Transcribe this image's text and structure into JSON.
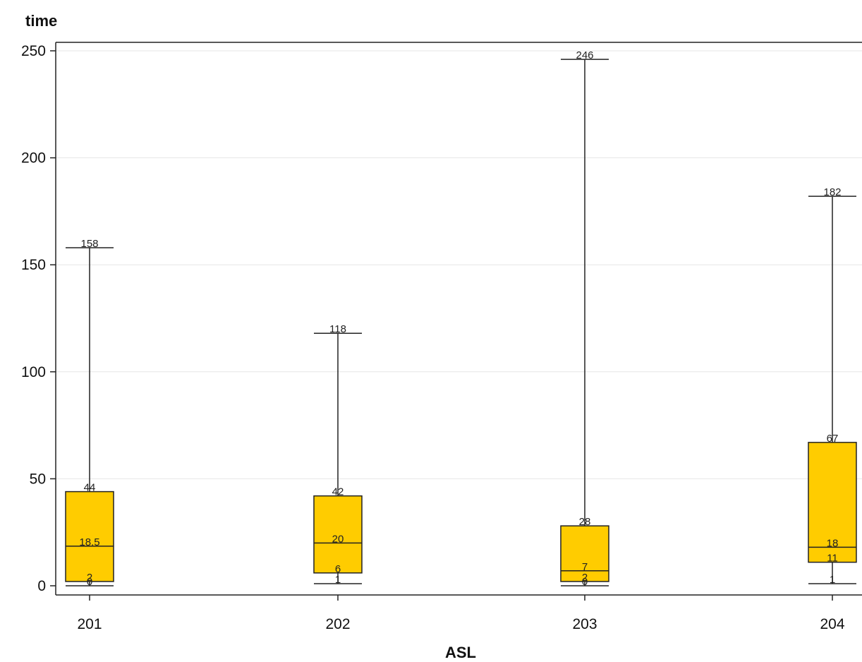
{
  "chart_data": {
    "type": "box",
    "ylabel": "time",
    "xlabel": "ASL",
    "ylim": [
      -4,
      254
    ],
    "yticks": [
      0,
      50,
      100,
      150,
      200,
      250
    ],
    "ytick_labels": [
      "0",
      "50",
      "100",
      "150",
      "200",
      "250"
    ],
    "grid": true,
    "box_color": "#ffcc00",
    "categories": [
      "201",
      "202",
      "203",
      "204"
    ],
    "boxes": [
      {
        "category": "201",
        "min": 0,
        "q1": 2,
        "median": 18.5,
        "q3": 44,
        "max": 158,
        "labels": {
          "min": "0",
          "q1": "2",
          "median": "18.5",
          "q3": "44",
          "max": "158"
        }
      },
      {
        "category": "202",
        "min": 1,
        "q1": 6,
        "median": 20,
        "q3": 42,
        "max": 118,
        "labels": {
          "min": "1",
          "q1": "6",
          "median": "20",
          "q3": "42",
          "max": "118"
        }
      },
      {
        "category": "203",
        "min": 0,
        "q1": 2,
        "median": 7,
        "q3": 28,
        "max": 246,
        "labels": {
          "min": "0",
          "q1": "2",
          "median": "7",
          "q3": "28",
          "max": "246"
        }
      },
      {
        "category": "204",
        "min": 1,
        "q1": 11,
        "median": 18,
        "q3": 67,
        "max": 182,
        "labels": {
          "min": "1",
          "q1": "11",
          "median": "18",
          "q3": "67",
          "max": "182"
        }
      }
    ]
  }
}
